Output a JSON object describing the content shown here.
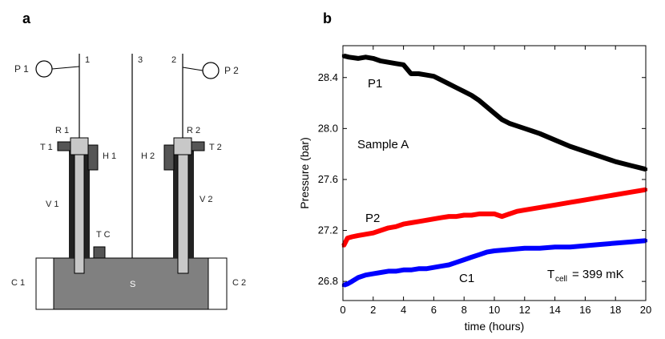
{
  "panel_a": {
    "panel_label": "a",
    "labels": {
      "p1": "P 1",
      "p2": "P 2",
      "line1": "1",
      "line2": "2",
      "line3": "3",
      "r1": "R 1",
      "r2": "R 2",
      "t1": "T 1",
      "t2": "T 2",
      "h1": "H 1",
      "h2": "H 2",
      "v1": "V 1",
      "v2": "V 2",
      "tc": "T C",
      "s": "S",
      "c1": "C 1",
      "c2": "C 2"
    }
  },
  "panel_b": {
    "panel_label": "b"
  },
  "chart_data": {
    "type": "line",
    "title": "",
    "xlabel": "time (hours)",
    "ylabel": "Pressure (bar)",
    "xlim": [
      0,
      20
    ],
    "ylim": [
      26.65,
      28.65
    ],
    "xticks": [
      0,
      2,
      4,
      6,
      8,
      10,
      12,
      14,
      16,
      18,
      20
    ],
    "yticks": [
      26.8,
      27.2,
      27.6,
      28.0,
      28.4
    ],
    "xtick_labels": [
      "0",
      "2",
      "4",
      "6",
      "8",
      "10",
      "12",
      "14",
      "16",
      "18",
      "20"
    ],
    "ytick_labels": [
      "26.8",
      "27.2",
      "27.6",
      "28.0",
      "28.4"
    ],
    "series": [
      {
        "name": "P1",
        "color": "#000000",
        "x": [
          0.05,
          0.4,
          1.0,
          1.5,
          2.0,
          2.5,
          3.0,
          3.5,
          4.0,
          4.5,
          5.0,
          5.5,
          6.0,
          6.5,
          7.0,
          7.5,
          8.0,
          8.5,
          9.0,
          9.5,
          10.0,
          10.5,
          11.0,
          11.5,
          12.0,
          12.5,
          13.0,
          14.0,
          15.0,
          16.0,
          17.0,
          18.0,
          19.0,
          20.0
        ],
        "y": [
          28.57,
          28.56,
          28.55,
          28.56,
          28.55,
          28.53,
          28.52,
          28.51,
          28.5,
          28.43,
          28.43,
          28.42,
          28.41,
          28.38,
          28.35,
          28.32,
          28.29,
          28.26,
          28.22,
          28.17,
          28.12,
          28.07,
          28.04,
          28.02,
          28.0,
          27.98,
          27.96,
          27.91,
          27.86,
          27.82,
          27.78,
          27.74,
          27.71,
          27.68
        ]
      },
      {
        "name": "P2",
        "color": "#ff0000",
        "x": [
          0.05,
          0.3,
          0.6,
          1.0,
          1.5,
          2.0,
          2.5,
          3.0,
          3.5,
          4.0,
          4.5,
          5.0,
          5.5,
          6.0,
          6.5,
          7.0,
          7.5,
          8.0,
          8.5,
          9.0,
          9.5,
          10.0,
          10.5,
          11.0,
          11.5,
          12.0,
          13.0,
          14.0,
          15.0,
          16.0,
          17.0,
          18.0,
          19.0,
          20.0
        ],
        "y": [
          27.08,
          27.14,
          27.15,
          27.16,
          27.17,
          27.18,
          27.2,
          27.22,
          27.23,
          27.25,
          27.26,
          27.27,
          27.28,
          27.29,
          27.3,
          27.31,
          27.31,
          27.32,
          27.32,
          27.33,
          27.33,
          27.33,
          27.31,
          27.33,
          27.35,
          27.36,
          27.38,
          27.4,
          27.42,
          27.44,
          27.46,
          27.48,
          27.5,
          27.52
        ]
      },
      {
        "name": "C1",
        "color": "#0000ff",
        "x": [
          0.05,
          0.3,
          0.6,
          1.0,
          1.5,
          2.0,
          2.5,
          3.0,
          3.5,
          4.0,
          4.5,
          5.0,
          5.5,
          6.0,
          6.5,
          7.0,
          7.5,
          8.0,
          8.5,
          9.0,
          9.5,
          10.0,
          11.0,
          12.0,
          13.0,
          14.0,
          15.0,
          16.0,
          17.0,
          18.0,
          19.0,
          20.0
        ],
        "y": [
          26.77,
          26.78,
          26.8,
          26.83,
          26.85,
          26.86,
          26.87,
          26.88,
          26.88,
          26.89,
          26.89,
          26.9,
          26.9,
          26.91,
          26.92,
          26.93,
          26.95,
          26.97,
          26.99,
          27.01,
          27.03,
          27.04,
          27.05,
          27.06,
          27.06,
          27.07,
          27.07,
          27.08,
          27.09,
          27.1,
          27.11,
          27.12
        ]
      }
    ],
    "annotations": {
      "p1": "P1",
      "p2": "P2",
      "c1": "C1",
      "sample": "Sample A",
      "tcell_main": "T",
      "tcell_sub": "cell",
      "tcell_value": "= 399 mK"
    }
  }
}
